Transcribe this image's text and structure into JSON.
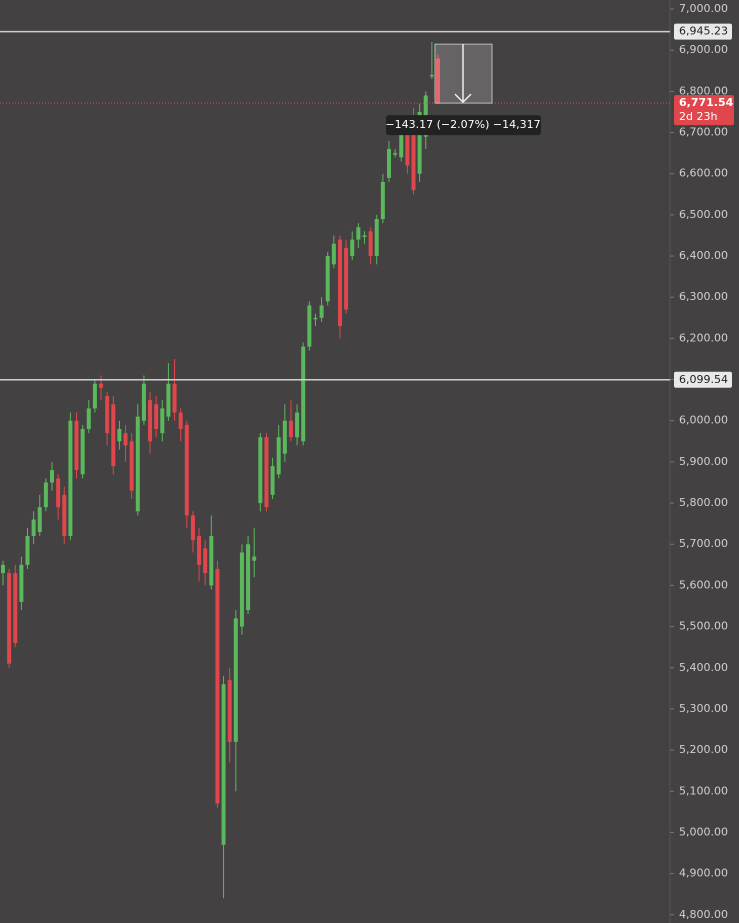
{
  "chart_data": {
    "type": "candlestick",
    "up_color": "#5cb85c",
    "down_color": "#e0474c",
    "open": [
      5630,
      5630,
      5630,
      5560,
      5650,
      5720,
      5730,
      5790,
      5850,
      5860,
      5820,
      5720,
      6000,
      5870,
      5980,
      6030,
      6090,
      6060,
      6040,
      5950,
      5970,
      5950,
      5780,
      6000,
      6050,
      6040,
      5970,
      6010,
      6090,
      6020,
      5990,
      5770,
      5720,
      5690,
      5600,
      5640,
      4970,
      5370,
      5220,
      5500,
      5540,
      5660,
      5800,
      5960,
      5820,
      5870,
      5920,
      6000,
      5960,
      5950,
      6180,
      6250,
      6250,
      6290,
      6380,
      6440,
      6420,
      6400,
      6440,
      6450,
      6460,
      6400,
      6490,
      6590,
      6650,
      6640,
      6720,
      6720,
      6600,
      6690,
      6840,
      6880
    ],
    "high": [
      5660,
      5640,
      5650,
      5670,
      5740,
      5780,
      5820,
      5860,
      5900,
      5870,
      5840,
      6020,
      6020,
      5990,
      6050,
      6100,
      6110,
      6070,
      6060,
      6000,
      5990,
      5970,
      6040,
      6110,
      6070,
      6060,
      6050,
      6140,
      6150,
      6030,
      6000,
      5780,
      5740,
      5710,
      5770,
      5660,
      5380,
      5400,
      5540,
      5700,
      5720,
      5740,
      5970,
      5970,
      5910,
      5990,
      6040,
      6050,
      6040,
      6190,
      6290,
      6260,
      6300,
      6410,
      6450,
      6450,
      6440,
      6460,
      6480,
      6460,
      6470,
      6500,
      6600,
      6680,
      6660,
      6730,
      6740,
      6760,
      6770,
      6800,
      6920,
      6890
    ],
    "low": [
      5600,
      5400,
      5450,
      5540,
      5640,
      5700,
      5720,
      5780,
      5830,
      5760,
      5700,
      5710,
      5860,
      5860,
      5970,
      6020,
      6050,
      5940,
      5870,
      5930,
      5900,
      5810,
      5770,
      5990,
      5920,
      5960,
      5950,
      6000,
      6000,
      5950,
      5740,
      5680,
      5610,
      5600,
      5590,
      5060,
      4840,
      5170,
      5100,
      5480,
      5530,
      5620,
      5780,
      5780,
      5810,
      5860,
      5900,
      5950,
      5940,
      5940,
      6170,
      6230,
      6240,
      6280,
      6370,
      6200,
      6260,
      6390,
      6420,
      6430,
      6380,
      6380,
      6480,
      6580,
      6640,
      6630,
      6600,
      6550,
      6580,
      6660,
      6830,
      6770
    ],
    "close": [
      5650,
      5410,
      5460,
      5650,
      5720,
      5760,
      5790,
      5850,
      5880,
      5790,
      5720,
      6000,
      5880,
      5980,
      6030,
      6090,
      6080,
      5970,
      5890,
      5980,
      5940,
      5830,
      6010,
      6090,
      5950,
      5980,
      6030,
      6090,
      6020,
      5980,
      5770,
      5710,
      5650,
      5630,
      5720,
      5070,
      5360,
      5220,
      5520,
      5680,
      5700,
      5670,
      5960,
      5790,
      5890,
      5960,
      6000,
      5960,
      6020,
      6180,
      6280,
      6250,
      6280,
      6400,
      6430,
      6230,
      6270,
      6440,
      6470,
      6450,
      6400,
      6490,
      6580,
      6660,
      6650,
      6700,
      6620,
      6560,
      6750,
      6790,
      6840,
      6770
    ],
    "ylim": [
      4780,
      7022
    ],
    "yticks": [
      {
        "value": 4800,
        "label": "4,800.00"
      },
      {
        "value": 4900,
        "label": "4,900.00"
      },
      {
        "value": 5000,
        "label": "5,000.00"
      },
      {
        "value": 5100,
        "label": "5,100.00"
      },
      {
        "value": 5200,
        "label": "5,200.00"
      },
      {
        "value": 5300,
        "label": "5,300.00"
      },
      {
        "value": 5400,
        "label": "5,400.00"
      },
      {
        "value": 5500,
        "label": "5,500.00"
      },
      {
        "value": 5600,
        "label": "5,600.00"
      },
      {
        "value": 5700,
        "label": "5,700.00"
      },
      {
        "value": 5800,
        "label": "5,800.00"
      },
      {
        "value": 5900,
        "label": "5,900.00"
      },
      {
        "value": 6000,
        "label": "6,000.00"
      },
      {
        "value": 6100,
        "label": "6,100.00"
      },
      {
        "value": 6200,
        "label": "6,200.00"
      },
      {
        "value": 6300,
        "label": "6,300.00"
      },
      {
        "value": 6400,
        "label": "6,400.00"
      },
      {
        "value": 6500,
        "label": "6,500.00"
      },
      {
        "value": 6600,
        "label": "6,600.00"
      },
      {
        "value": 6700,
        "label": "6,700.00"
      },
      {
        "value": 6800,
        "label": "6,800.00"
      },
      {
        "value": 6900,
        "label": "6,900.00"
      },
      {
        "value": 7000,
        "label": "7,000.00"
      }
    ],
    "lines": [
      {
        "value": 6945.23,
        "label": "6,945.23"
      },
      {
        "value": 6099.54,
        "label": "6,099.54"
      }
    ],
    "current_price": {
      "value": 6771.54,
      "label": "6,771.54",
      "countdown": "2d 23h"
    },
    "measure": {
      "from": 6914.71,
      "to": 6771.54,
      "label": "−143.17 (−2.07%) −14,317"
    }
  }
}
